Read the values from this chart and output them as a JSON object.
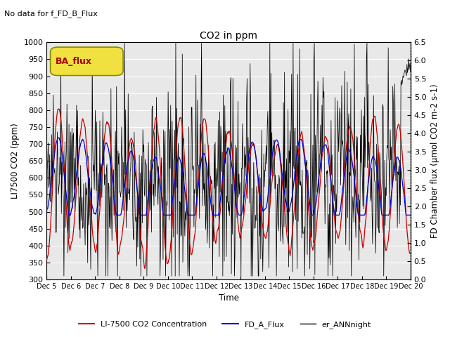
{
  "title": "CO2 in ppm",
  "top_left_text": "No data for f_FD_B_Flux",
  "legend_box_text": "BA_flux",
  "ylabel_left": "LI7500 CO2 (ppm)",
  "ylabel_right": "FD Chamber flux (μmol CO2 m-2 s-1)",
  "xlabel": "Time",
  "ylim_left": [
    300,
    1000
  ],
  "ylim_right": [
    0.0,
    6.5
  ],
  "yticks_left": [
    300,
    350,
    400,
    450,
    500,
    550,
    600,
    650,
    700,
    750,
    800,
    850,
    900,
    950,
    1000
  ],
  "yticks_right": [
    0.0,
    0.5,
    1.0,
    1.5,
    2.0,
    2.5,
    3.0,
    3.5,
    4.0,
    4.5,
    5.0,
    5.5,
    6.0,
    6.5
  ],
  "xtick_labels": [
    "Dec 5",
    "Dec 6",
    "Dec 7",
    "Dec 8",
    "Dec 9",
    "Dec 10",
    "Dec 11",
    "Dec 12",
    "Dec 13",
    "Dec 14",
    "Dec 15",
    "Dec 16",
    "Dec 17",
    "Dec 18",
    "Dec 19",
    "Dec 20"
  ],
  "n_days": 15,
  "ppd": 48,
  "colors": {
    "red": "#cc0000",
    "blue": "#0000cc",
    "black": "#000000",
    "bg_axes": "#e8e8e8",
    "legend_box_bg": "#f0e040",
    "legend_box_border": "#888800",
    "legend_box_text": "#aa0000",
    "grid": "#ffffff"
  },
  "legend": [
    {
      "label": "LI-7500 CO2 Concentration",
      "color": "#cc0000",
      "lw": 1.5
    },
    {
      "label": "FD_A_Flux",
      "color": "#0000cc",
      "lw": 1.5
    },
    {
      "label": "er_ANNnight",
      "color": "#000000",
      "lw": 1.0
    }
  ]
}
